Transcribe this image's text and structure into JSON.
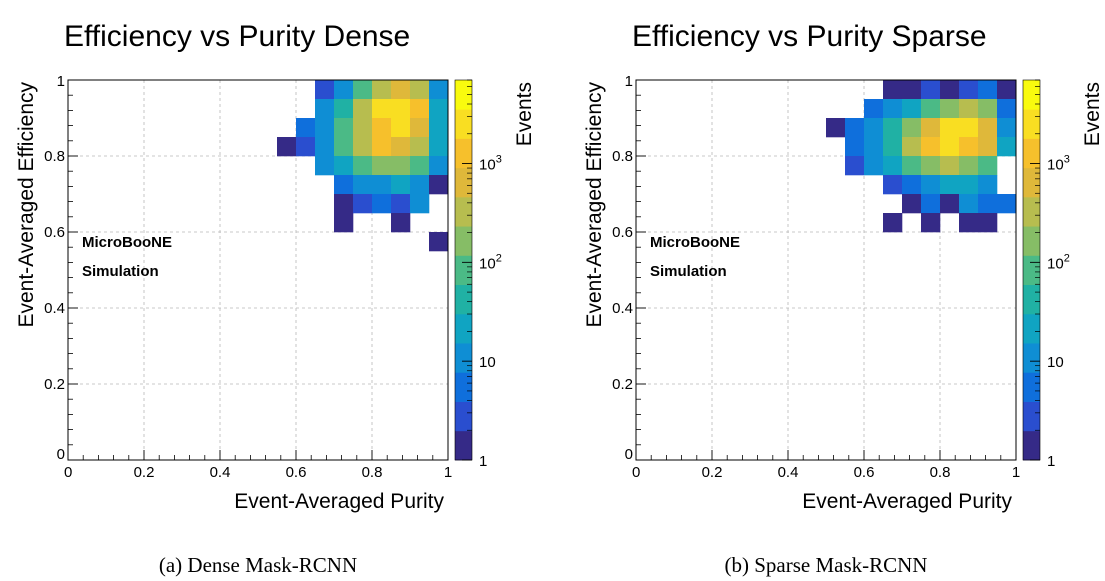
{
  "colorbar": {
    "label": "Events",
    "ticks": [
      {
        "value": 1,
        "label": "1"
      },
      {
        "value": 10,
        "label": "10"
      },
      {
        "value": 100,
        "label": "10",
        "sup": "2"
      },
      {
        "value": 1000,
        "label": "10",
        "sup": "3"
      }
    ],
    "min": 1,
    "max": 7000,
    "scale": "log",
    "colors": [
      "#352a87",
      "#2a4ecf",
      "#0f6fdc",
      "#0f8ed4",
      "#10a4c2",
      "#20b1a4",
      "#4bba86",
      "#86bd66",
      "#b7bd4f",
      "#dfb83a",
      "#f6c02c",
      "#f9de22",
      "#f9fb0e"
    ]
  },
  "annotation": {
    "line1": "MicroBooNE",
    "line2": "Simulation"
  },
  "chart_data": [
    {
      "type": "heatmap",
      "title": "Efficiency vs Purity Dense",
      "xlabel": "Event-Averaged Purity",
      "ylabel": "Event-Averaged Efficiency",
      "caption": "(a) Dense Mask-RCNN",
      "xlim": [
        0,
        1
      ],
      "ylim": [
        0,
        1
      ],
      "xticks": [
        {
          "value": 0,
          "label": "0"
        },
        {
          "value": 0.2,
          "label": "0.2"
        },
        {
          "value": 0.4,
          "label": "0.4"
        },
        {
          "value": 0.6,
          "label": "0.6"
        },
        {
          "value": 0.8,
          "label": "0.8"
        },
        {
          "value": 1,
          "label": "1"
        }
      ],
      "yticks": [
        {
          "value": 0,
          "label": "0"
        },
        {
          "value": 0.2,
          "label": "0.2"
        },
        {
          "value": 0.4,
          "label": "0.4"
        },
        {
          "value": 0.6,
          "label": "0.6"
        },
        {
          "value": 0.8,
          "label": "0.8"
        },
        {
          "value": 1,
          "label": "1"
        }
      ],
      "grid": true,
      "bin_width": 0.05,
      "bins": [
        {
          "x": 0.65,
          "y": 0.95,
          "v": 2
        },
        {
          "x": 0.7,
          "y": 0.95,
          "v": 15
        },
        {
          "x": 0.75,
          "y": 0.95,
          "v": 60
        },
        {
          "x": 0.8,
          "y": 0.95,
          "v": 400
        },
        {
          "x": 0.85,
          "y": 0.95,
          "v": 500
        },
        {
          "x": 0.9,
          "y": 0.95,
          "v": 300
        },
        {
          "x": 0.95,
          "y": 0.95,
          "v": 12
        },
        {
          "x": 0.65,
          "y": 0.9,
          "v": 8
        },
        {
          "x": 0.7,
          "y": 0.9,
          "v": 40
        },
        {
          "x": 0.75,
          "y": 0.9,
          "v": 250
        },
        {
          "x": 0.8,
          "y": 0.9,
          "v": 1800
        },
        {
          "x": 0.85,
          "y": 0.9,
          "v": 3000
        },
        {
          "x": 0.9,
          "y": 0.9,
          "v": 1500
        },
        {
          "x": 0.95,
          "y": 0.9,
          "v": 25
        },
        {
          "x": 0.6,
          "y": 0.85,
          "v": 4
        },
        {
          "x": 0.65,
          "y": 0.85,
          "v": 15
        },
        {
          "x": 0.7,
          "y": 0.85,
          "v": 80
        },
        {
          "x": 0.75,
          "y": 0.85,
          "v": 300
        },
        {
          "x": 0.8,
          "y": 0.85,
          "v": 1500
        },
        {
          "x": 0.85,
          "y": 0.85,
          "v": 1800
        },
        {
          "x": 0.9,
          "y": 0.85,
          "v": 900
        },
        {
          "x": 0.95,
          "y": 0.85,
          "v": 18
        },
        {
          "x": 0.55,
          "y": 0.8,
          "v": 1
        },
        {
          "x": 0.6,
          "y": 0.8,
          "v": 2
        },
        {
          "x": 0.65,
          "y": 0.8,
          "v": 15
        },
        {
          "x": 0.7,
          "y": 0.8,
          "v": 90
        },
        {
          "x": 0.75,
          "y": 0.8,
          "v": 300
        },
        {
          "x": 0.8,
          "y": 0.8,
          "v": 1200
        },
        {
          "x": 0.85,
          "y": 0.8,
          "v": 900
        },
        {
          "x": 0.9,
          "y": 0.8,
          "v": 350
        },
        {
          "x": 0.95,
          "y": 0.8,
          "v": 25
        },
        {
          "x": 0.65,
          "y": 0.75,
          "v": 8
        },
        {
          "x": 0.7,
          "y": 0.75,
          "v": 25
        },
        {
          "x": 0.75,
          "y": 0.75,
          "v": 60
        },
        {
          "x": 0.8,
          "y": 0.75,
          "v": 150
        },
        {
          "x": 0.85,
          "y": 0.75,
          "v": 130
        },
        {
          "x": 0.9,
          "y": 0.75,
          "v": 80
        },
        {
          "x": 0.95,
          "y": 0.75,
          "v": 15
        },
        {
          "x": 0.7,
          "y": 0.7,
          "v": 4
        },
        {
          "x": 0.75,
          "y": 0.7,
          "v": 10
        },
        {
          "x": 0.8,
          "y": 0.7,
          "v": 12
        },
        {
          "x": 0.85,
          "y": 0.7,
          "v": 25
        },
        {
          "x": 0.9,
          "y": 0.7,
          "v": 15
        },
        {
          "x": 0.95,
          "y": 0.7,
          "v": 1
        },
        {
          "x": 0.7,
          "y": 0.65,
          "v": 1
        },
        {
          "x": 0.75,
          "y": 0.65,
          "v": 2
        },
        {
          "x": 0.8,
          "y": 0.65,
          "v": 4
        },
        {
          "x": 0.85,
          "y": 0.65,
          "v": 2
        },
        {
          "x": 0.9,
          "y": 0.65,
          "v": 8
        },
        {
          "x": 0.7,
          "y": 0.6,
          "v": 1
        },
        {
          "x": 0.85,
          "y": 0.6,
          "v": 1
        },
        {
          "x": 0.95,
          "y": 0.55,
          "v": 1
        }
      ]
    },
    {
      "type": "heatmap",
      "title": "Efficiency vs Purity Sparse",
      "xlabel": "Event-Averaged Purity",
      "ylabel": "Event-Averaged Efficiency",
      "caption": "(b) Sparse Mask-RCNN",
      "xlim": [
        0,
        1
      ],
      "ylim": [
        0,
        1
      ],
      "xticks": [
        {
          "value": 0,
          "label": "0"
        },
        {
          "value": 0.2,
          "label": "0.2"
        },
        {
          "value": 0.4,
          "label": "0.4"
        },
        {
          "value": 0.6,
          "label": "0.6"
        },
        {
          "value": 0.8,
          "label": "0.8"
        },
        {
          "value": 1,
          "label": "1"
        }
      ],
      "yticks": [
        {
          "value": 0,
          "label": "0"
        },
        {
          "value": 0.2,
          "label": "0.2"
        },
        {
          "value": 0.4,
          "label": "0.4"
        },
        {
          "value": 0.6,
          "label": "0.6"
        },
        {
          "value": 0.8,
          "label": "0.8"
        },
        {
          "value": 1,
          "label": "1"
        }
      ],
      "grid": true,
      "bin_width": 0.05,
      "bins": [
        {
          "x": 0.65,
          "y": 0.95,
          "v": 1
        },
        {
          "x": 0.7,
          "y": 0.95,
          "v": 1
        },
        {
          "x": 0.75,
          "y": 0.95,
          "v": 2
        },
        {
          "x": 0.8,
          "y": 0.95,
          "v": 1
        },
        {
          "x": 0.85,
          "y": 0.95,
          "v": 3
        },
        {
          "x": 0.9,
          "y": 0.95,
          "v": 4
        },
        {
          "x": 0.95,
          "y": 0.95,
          "v": 1
        },
        {
          "x": 0.6,
          "y": 0.9,
          "v": 6
        },
        {
          "x": 0.65,
          "y": 0.9,
          "v": 12
        },
        {
          "x": 0.7,
          "y": 0.9,
          "v": 30
        },
        {
          "x": 0.75,
          "y": 0.9,
          "v": 90
        },
        {
          "x": 0.8,
          "y": 0.9,
          "v": 200
        },
        {
          "x": 0.85,
          "y": 0.9,
          "v": 400
        },
        {
          "x": 0.9,
          "y": 0.9,
          "v": 120
        },
        {
          "x": 0.95,
          "y": 0.9,
          "v": 6
        },
        {
          "x": 0.5,
          "y": 0.85,
          "v": 1
        },
        {
          "x": 0.55,
          "y": 0.85,
          "v": 5
        },
        {
          "x": 0.6,
          "y": 0.85,
          "v": 12
        },
        {
          "x": 0.65,
          "y": 0.85,
          "v": 35
        },
        {
          "x": 0.7,
          "y": 0.85,
          "v": 200
        },
        {
          "x": 0.75,
          "y": 0.85,
          "v": 900
        },
        {
          "x": 0.8,
          "y": 0.85,
          "v": 2000
        },
        {
          "x": 0.85,
          "y": 0.85,
          "v": 2500
        },
        {
          "x": 0.9,
          "y": 0.85,
          "v": 700
        },
        {
          "x": 0.95,
          "y": 0.85,
          "v": 15
        },
        {
          "x": 0.55,
          "y": 0.8,
          "v": 4
        },
        {
          "x": 0.6,
          "y": 0.8,
          "v": 10
        },
        {
          "x": 0.65,
          "y": 0.8,
          "v": 40
        },
        {
          "x": 0.7,
          "y": 0.8,
          "v": 250
        },
        {
          "x": 0.75,
          "y": 0.8,
          "v": 1200
        },
        {
          "x": 0.8,
          "y": 0.8,
          "v": 1800
        },
        {
          "x": 0.85,
          "y": 0.8,
          "v": 1500
        },
        {
          "x": 0.9,
          "y": 0.8,
          "v": 600
        },
        {
          "x": 0.95,
          "y": 0.8,
          "v": 20
        },
        {
          "x": 0.55,
          "y": 0.75,
          "v": 3
        },
        {
          "x": 0.6,
          "y": 0.75,
          "v": 8
        },
        {
          "x": 0.65,
          "y": 0.75,
          "v": 25
        },
        {
          "x": 0.7,
          "y": 0.75,
          "v": 80
        },
        {
          "x": 0.75,
          "y": 0.75,
          "v": 200
        },
        {
          "x": 0.8,
          "y": 0.75,
          "v": 250
        },
        {
          "x": 0.85,
          "y": 0.75,
          "v": 200
        },
        {
          "x": 0.9,
          "y": 0.75,
          "v": 70
        },
        {
          "x": 0.65,
          "y": 0.7,
          "v": 2
        },
        {
          "x": 0.7,
          "y": 0.7,
          "v": 6
        },
        {
          "x": 0.75,
          "y": 0.7,
          "v": 15
        },
        {
          "x": 0.8,
          "y": 0.7,
          "v": 30
        },
        {
          "x": 0.85,
          "y": 0.7,
          "v": 25
        },
        {
          "x": 0.9,
          "y": 0.7,
          "v": 15
        },
        {
          "x": 0.7,
          "y": 0.65,
          "v": 1
        },
        {
          "x": 0.75,
          "y": 0.65,
          "v": 4
        },
        {
          "x": 0.8,
          "y": 0.65,
          "v": 1
        },
        {
          "x": 0.85,
          "y": 0.65,
          "v": 8
        },
        {
          "x": 0.9,
          "y": 0.65,
          "v": 6
        },
        {
          "x": 0.95,
          "y": 0.65,
          "v": 4
        },
        {
          "x": 0.65,
          "y": 0.6,
          "v": 1
        },
        {
          "x": 0.75,
          "y": 0.6,
          "v": 1
        },
        {
          "x": 0.85,
          "y": 0.6,
          "v": 1
        },
        {
          "x": 0.9,
          "y": 0.6,
          "v": 1
        }
      ]
    }
  ]
}
